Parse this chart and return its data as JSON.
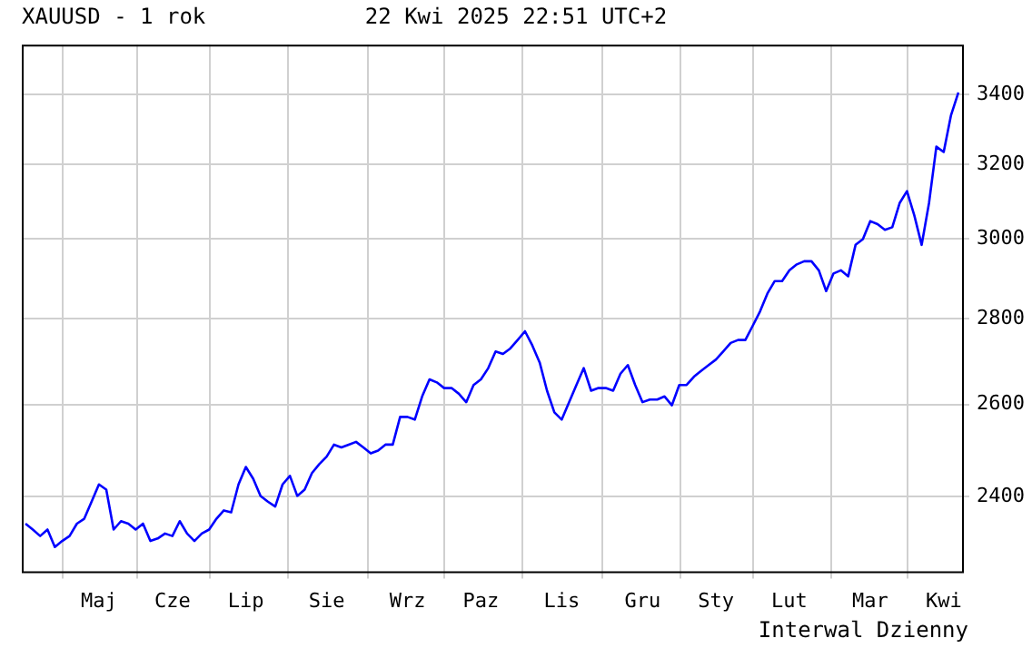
{
  "chart_data": {
    "type": "line",
    "title": "XAUUSD - 1 rok",
    "subtitle": "22 Kwi 2025 22:51 UTC+2",
    "categories": [
      null,
      null,
      null,
      null,
      null,
      null,
      null,
      null,
      null,
      null,
      "Maj",
      null,
      null,
      null,
      null,
      null,
      null,
      null,
      null,
      null,
      "Cze",
      null,
      null,
      null,
      null,
      null,
      null,
      null,
      null,
      null,
      "Lip",
      null,
      null,
      null,
      null,
      null,
      null,
      null,
      null,
      null,
      null,
      "Sie",
      null,
      null,
      null,
      null,
      null,
      null,
      null,
      null,
      null,
      null,
      "Wrz",
      null,
      null,
      null,
      null,
      null,
      null,
      null,
      null,
      null,
      "Paz",
      null,
      null,
      null,
      null,
      null,
      null,
      null,
      null,
      null,
      null,
      "Lis",
      null,
      null,
      null,
      null,
      null,
      null,
      null,
      null,
      null,
      null,
      "Gru",
      null,
      null,
      null,
      null,
      null,
      null,
      null,
      null,
      null,
      "Sty",
      null,
      null,
      null,
      null,
      null,
      null,
      null,
      null,
      null,
      "Lut",
      null,
      null,
      null,
      null,
      null,
      null,
      null,
      null,
      null,
      null,
      "Mar",
      null,
      null,
      null,
      null,
      null,
      null,
      null,
      null,
      null,
      "Kwi",
      null,
      null
    ],
    "series": [
      {
        "color": "#0000ff",
        "values": [
          2345,
          2333,
          2320,
          2333,
          2298,
          2310,
          2320,
          2345,
          2355,
          2390,
          2426,
          2415,
          2333,
          2350,
          2345,
          2333,
          2345,
          2310,
          2315,
          2325,
          2320,
          2350,
          2325,
          2310,
          2325,
          2333,
          2355,
          2372,
          2368,
          2426,
          2463,
          2438,
          2402,
          2390,
          2380,
          2426,
          2444,
          2402,
          2415,
          2450,
          2469,
          2485,
          2511,
          2505,
          2511,
          2517,
          2505,
          2492,
          2498,
          2511,
          2511,
          2572,
          2572,
          2566,
          2618,
          2657,
          2650,
          2637,
          2637,
          2624,
          2605,
          2644,
          2657,
          2683,
          2722,
          2716,
          2729,
          2749,
          2770,
          2736,
          2696,
          2631,
          2582,
          2566,
          2605,
          2644,
          2683,
          2631,
          2637,
          2637,
          2631,
          2670,
          2690,
          2644,
          2605,
          2611,
          2611,
          2618,
          2598,
          2644,
          2644,
          2663,
          2677,
          2690,
          2703,
          2722,
          2742,
          2749,
          2749,
          2783,
          2818,
          2862,
          2893,
          2893,
          2920,
          2935,
          2943,
          2943,
          2920,
          2868,
          2912,
          2920,
          2905,
          2985,
          3000,
          3047,
          3039,
          3024,
          3031,
          3095,
          3127,
          3062,
          2985,
          3095,
          3250,
          3235,
          3340,
          3406
        ]
      }
    ],
    "ylim": [
      2250,
      3550
    ],
    "yticks": [
      2400,
      2600,
      2800,
      3000,
      3200,
      3400
    ],
    "log": "y",
    "grid": true,
    "legend": false,
    "annotations": [
      "Interwal Dzienny"
    ]
  }
}
